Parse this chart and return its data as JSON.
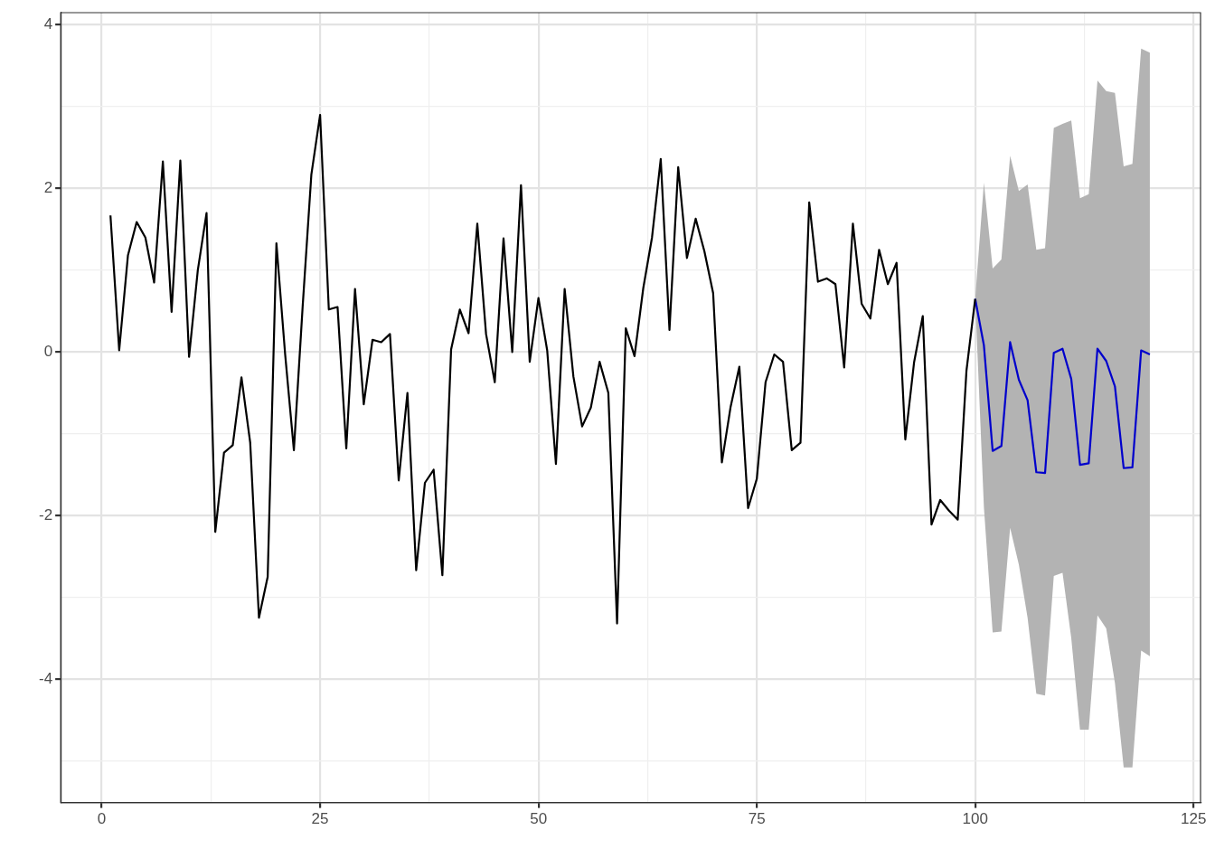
{
  "chart_data": {
    "type": "line",
    "xlim": [
      -4.7,
      125.8
    ],
    "ylim": [
      -5.51,
      4.15
    ],
    "xticks": [
      0,
      {
        "value": 12.5,
        "label": null
      },
      25,
      {
        "value": 37.5,
        "label": null
      },
      50,
      {
        "value": 62.5,
        "label": null
      },
      75,
      {
        "value": 87.5,
        "label": null
      },
      100,
      {
        "value": 112.5,
        "label": null
      },
      125
    ],
    "yticks": [
      {
        "value": -5,
        "label": null
      },
      -4,
      {
        "value": -3,
        "label": null
      },
      -2,
      {
        "value": -1,
        "label": null
      },
      0,
      {
        "value": 1,
        "label": null
      },
      2,
      {
        "value": 3,
        "label": null
      },
      4
    ],
    "grid": true,
    "legend": false,
    "series": [
      {
        "color": "#000000",
        "x": [
          1,
          2,
          3,
          4,
          5,
          6,
          7,
          8,
          9,
          10,
          11,
          12,
          13,
          14,
          15,
          16,
          17,
          18,
          19,
          20,
          21,
          22,
          23,
          24,
          25,
          26,
          27,
          28,
          29,
          30,
          31,
          32,
          33,
          34,
          35,
          36,
          37,
          38,
          39,
          40,
          41,
          42,
          43,
          44,
          45,
          46,
          47,
          48,
          49,
          50,
          51,
          52,
          53,
          54,
          55,
          56,
          57,
          58,
          59,
          60,
          61,
          62,
          63,
          64,
          65,
          66,
          67,
          68,
          69,
          70,
          71,
          72,
          73,
          74,
          75,
          76,
          77,
          78,
          79,
          80,
          81,
          82,
          83,
          84,
          85,
          86,
          87,
          88,
          89,
          90,
          91,
          92,
          93,
          94,
          95,
          96,
          97,
          98,
          99,
          100
        ],
        "values": [
          1.67,
          0.02,
          1.18,
          1.59,
          1.4,
          0.85,
          2.33,
          0.49,
          2.34,
          -0.06,
          1.0,
          1.7,
          -2.2,
          -1.23,
          -1.14,
          -0.31,
          -1.11,
          -3.25,
          -2.75,
          1.33,
          -0.03,
          -1.2,
          0.55,
          2.17,
          2.9,
          0.52,
          0.55,
          -1.18,
          0.77,
          -0.64,
          0.15,
          0.12,
          0.22,
          -1.57,
          -0.5,
          -2.67,
          -1.6,
          -1.44,
          -2.73,
          0.03,
          0.52,
          0.23,
          1.57,
          0.22,
          -0.37,
          1.39,
          0.0,
          2.04,
          -0.12,
          0.66,
          0.02,
          -1.37,
          0.77,
          -0.3,
          -0.91,
          -0.68,
          -0.12,
          -0.5,
          -3.32,
          0.29,
          -0.05,
          0.78,
          1.4,
          2.36,
          0.27,
          2.26,
          1.15,
          1.63,
          1.23,
          0.72,
          -1.35,
          -0.67,
          -0.18,
          -1.91,
          -1.55,
          -0.37,
          -0.03,
          -0.12,
          -1.2,
          -1.11,
          1.83,
          0.86,
          0.9,
          0.83,
          -0.19,
          1.57,
          0.59,
          0.41,
          1.25,
          0.83,
          1.09,
          -1.07,
          -0.13,
          0.44,
          -2.11,
          -1.81,
          -1.94,
          -2.05,
          -0.23,
          0.65
        ]
      },
      {
        "color": "#0000cc",
        "x": [
          100,
          101,
          102,
          103,
          104,
          105,
          106,
          107,
          108,
          109,
          110,
          111,
          112,
          113,
          114,
          115,
          116,
          117,
          118,
          119,
          120
        ],
        "values": [
          0.65,
          0.08,
          -1.21,
          -1.15,
          0.12,
          -0.34,
          -0.59,
          -1.47,
          -1.48,
          -0.01,
          0.04,
          -0.33,
          -1.38,
          -1.36,
          0.04,
          -0.11,
          -0.42,
          -1.42,
          -1.41,
          0.02,
          -0.03
        ],
        "upper": [
          0.65,
          2.07,
          1.02,
          1.13,
          2.4,
          1.97,
          2.05,
          1.25,
          1.27,
          2.74,
          2.79,
          2.83,
          1.88,
          1.93,
          3.32,
          3.19,
          3.17,
          2.27,
          2.3,
          3.71,
          3.66
        ],
        "lower": [
          0.65,
          -1.9,
          -3.43,
          -3.42,
          -2.15,
          -2.6,
          -3.25,
          -4.18,
          -4.2,
          -2.74,
          -2.7,
          -3.5,
          -4.62,
          -4.62,
          -3.22,
          -3.38,
          -4.05,
          -5.08,
          -5.08,
          -3.65,
          -3.72
        ]
      }
    ]
  }
}
